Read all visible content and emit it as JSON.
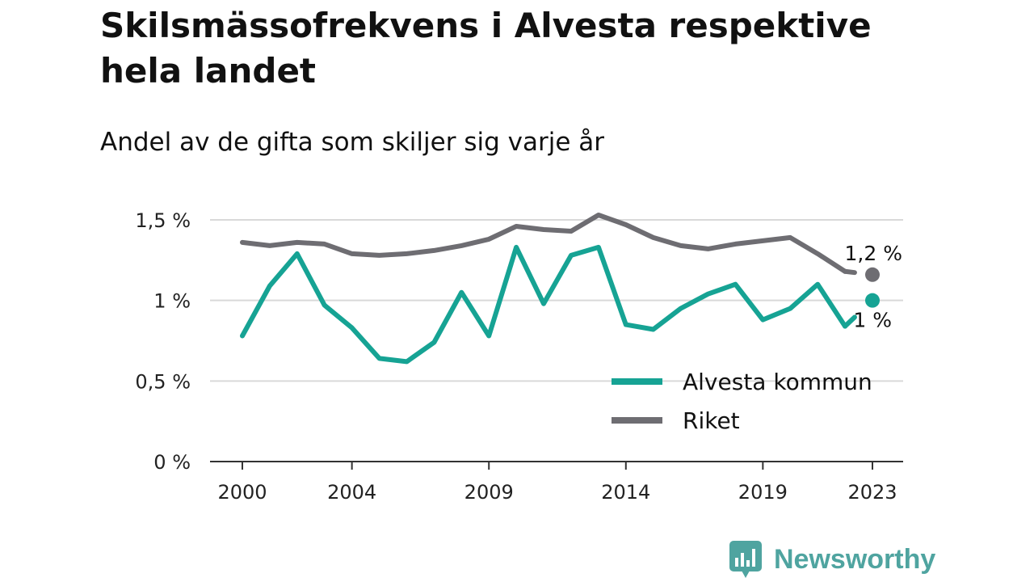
{
  "header": {
    "title": "Skilsmässofrekvens i Alvesta respektive hela landet",
    "subtitle": "Andel av de gifta som skiljer sig varje år"
  },
  "brand": {
    "name": "Newsworthy",
    "logo_icon": "newsworthy-chart-logo-icon",
    "color": "#4fa4a0"
  },
  "chart_data": {
    "type": "line",
    "title": "Skilsmässofrekvens i Alvesta respektive hela landet",
    "subtitle": "Andel av de gifta som skiljer sig varje år",
    "xlabel": "",
    "ylabel": "",
    "x": [
      2000,
      2001,
      2002,
      2003,
      2004,
      2005,
      2006,
      2007,
      2008,
      2009,
      2010,
      2011,
      2012,
      2013,
      2014,
      2015,
      2016,
      2017,
      2018,
      2019,
      2020,
      2021,
      2022,
      2023
    ],
    "x_ticks": [
      2000,
      2004,
      2009,
      2014,
      2019,
      2023
    ],
    "x_tick_labels": [
      "2000",
      "2004",
      "2009",
      "2014",
      "2019",
      "2023"
    ],
    "xlim": [
      2000,
      2023
    ],
    "ylim": [
      0,
      1.5
    ],
    "y_ticks": [
      0,
      0.5,
      1,
      1.5
    ],
    "y_tick_labels": [
      "0 %",
      "0,5 %",
      "1 %",
      "1,5 %"
    ],
    "grid": true,
    "legend_position": "bottom-right",
    "series": [
      {
        "name": "Alvesta kommun",
        "color": "#16a394",
        "values": [
          0.78,
          1.09,
          1.29,
          0.97,
          0.83,
          0.64,
          0.62,
          0.74,
          1.05,
          0.78,
          1.33,
          0.98,
          1.28,
          1.33,
          0.85,
          0.82,
          0.95,
          1.04,
          1.1,
          0.88,
          0.95,
          1.1,
          0.84,
          1.0
        ],
        "end_label": "1 %"
      },
      {
        "name": "Riket",
        "color": "#6e6d72",
        "values": [
          1.36,
          1.34,
          1.36,
          1.35,
          1.29,
          1.28,
          1.29,
          1.31,
          1.34,
          1.38,
          1.46,
          1.44,
          1.43,
          1.53,
          1.47,
          1.39,
          1.34,
          1.32,
          1.35,
          1.37,
          1.39,
          1.29,
          1.18,
          1.16
        ],
        "end_label": "1,2 %"
      }
    ]
  }
}
